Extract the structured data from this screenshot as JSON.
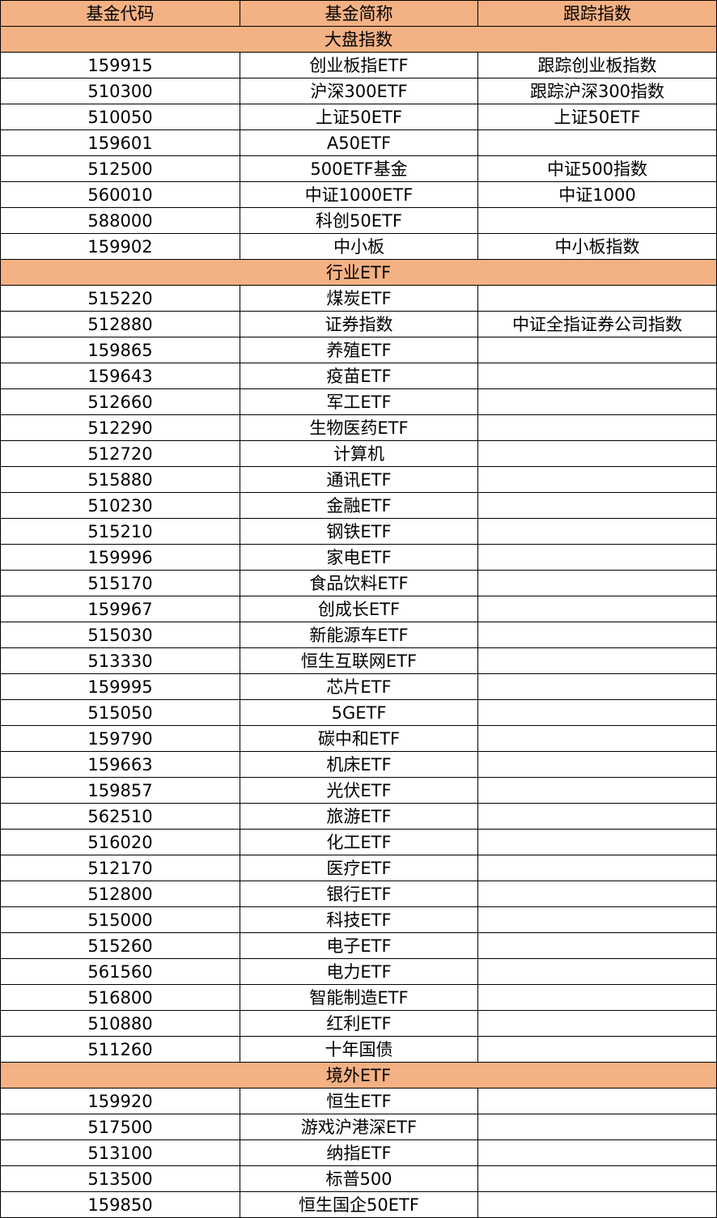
{
  "headers": [
    "基金代码",
    "基金简称",
    "跟踪指数"
  ],
  "colors": {
    "header_bg": "#f4b183",
    "section_bg": "#f4b183",
    "border": "#000000"
  },
  "sections": [
    {
      "title": "大盘指数",
      "rows": [
        [
          "159915",
          "创业板指ETF",
          "跟踪创业板指数"
        ],
        [
          "510300",
          "沪深300ETF",
          "跟踪沪深300指数"
        ],
        [
          "510050",
          "上证50ETF",
          "上证50ETF"
        ],
        [
          "159601",
          "A50ETF",
          ""
        ],
        [
          "512500",
          "500ETF基金",
          "中证500指数"
        ],
        [
          "560010",
          "中证1000ETF",
          "中证1000"
        ],
        [
          "588000",
          "科创50ETF",
          ""
        ],
        [
          "159902",
          "中小板",
          "中小板指数"
        ]
      ]
    },
    {
      "title": "行业ETF",
      "rows": [
        [
          "515220",
          "煤炭ETF",
          ""
        ],
        [
          "512880",
          "证券指数",
          "中证全指证券公司指数"
        ],
        [
          "159865",
          "养殖ETF",
          ""
        ],
        [
          "159643",
          "疫苗ETF",
          ""
        ],
        [
          "512660",
          "军工ETF",
          ""
        ],
        [
          "512290",
          "生物医药ETF",
          ""
        ],
        [
          "512720",
          "计算机",
          ""
        ],
        [
          "515880",
          "通讯ETF",
          ""
        ],
        [
          "510230",
          "金融ETF",
          ""
        ],
        [
          "515210",
          "钢铁ETF",
          ""
        ],
        [
          "159996",
          "家电ETF",
          ""
        ],
        [
          "515170",
          "食品饮料ETF",
          ""
        ],
        [
          "159967",
          "创成长ETF",
          ""
        ],
        [
          "515030",
          "新能源车ETF",
          ""
        ],
        [
          "513330",
          "恒生互联网ETF",
          ""
        ],
        [
          "159995",
          "芯片ETF",
          ""
        ],
        [
          "515050",
          "5GETF",
          ""
        ],
        [
          "159790",
          "碳中和ETF",
          ""
        ],
        [
          "159663",
          "机床ETF",
          ""
        ],
        [
          "159857",
          "光伏ETF",
          ""
        ],
        [
          "562510",
          "旅游ETF",
          ""
        ],
        [
          "516020",
          "化工ETF",
          ""
        ],
        [
          "512170",
          "医疗ETF",
          ""
        ],
        [
          "512800",
          "银行ETF",
          ""
        ],
        [
          "515000",
          "科技ETF",
          ""
        ],
        [
          "515260",
          "电子ETF",
          ""
        ],
        [
          "561560",
          "电力ETF",
          ""
        ],
        [
          "516800",
          "智能制造ETF",
          ""
        ],
        [
          "510880",
          "红利ETF",
          ""
        ],
        [
          "511260",
          "十年国债",
          ""
        ]
      ]
    },
    {
      "title": "境外ETF",
      "rows": [
        [
          "159920",
          "恒生ETF",
          ""
        ],
        [
          "517500",
          "游戏沪港深ETF",
          ""
        ],
        [
          "513100",
          "纳指ETF",
          ""
        ],
        [
          "513500",
          "标普500",
          ""
        ],
        [
          "159850",
          "恒生国企50ETF",
          ""
        ]
      ]
    }
  ]
}
